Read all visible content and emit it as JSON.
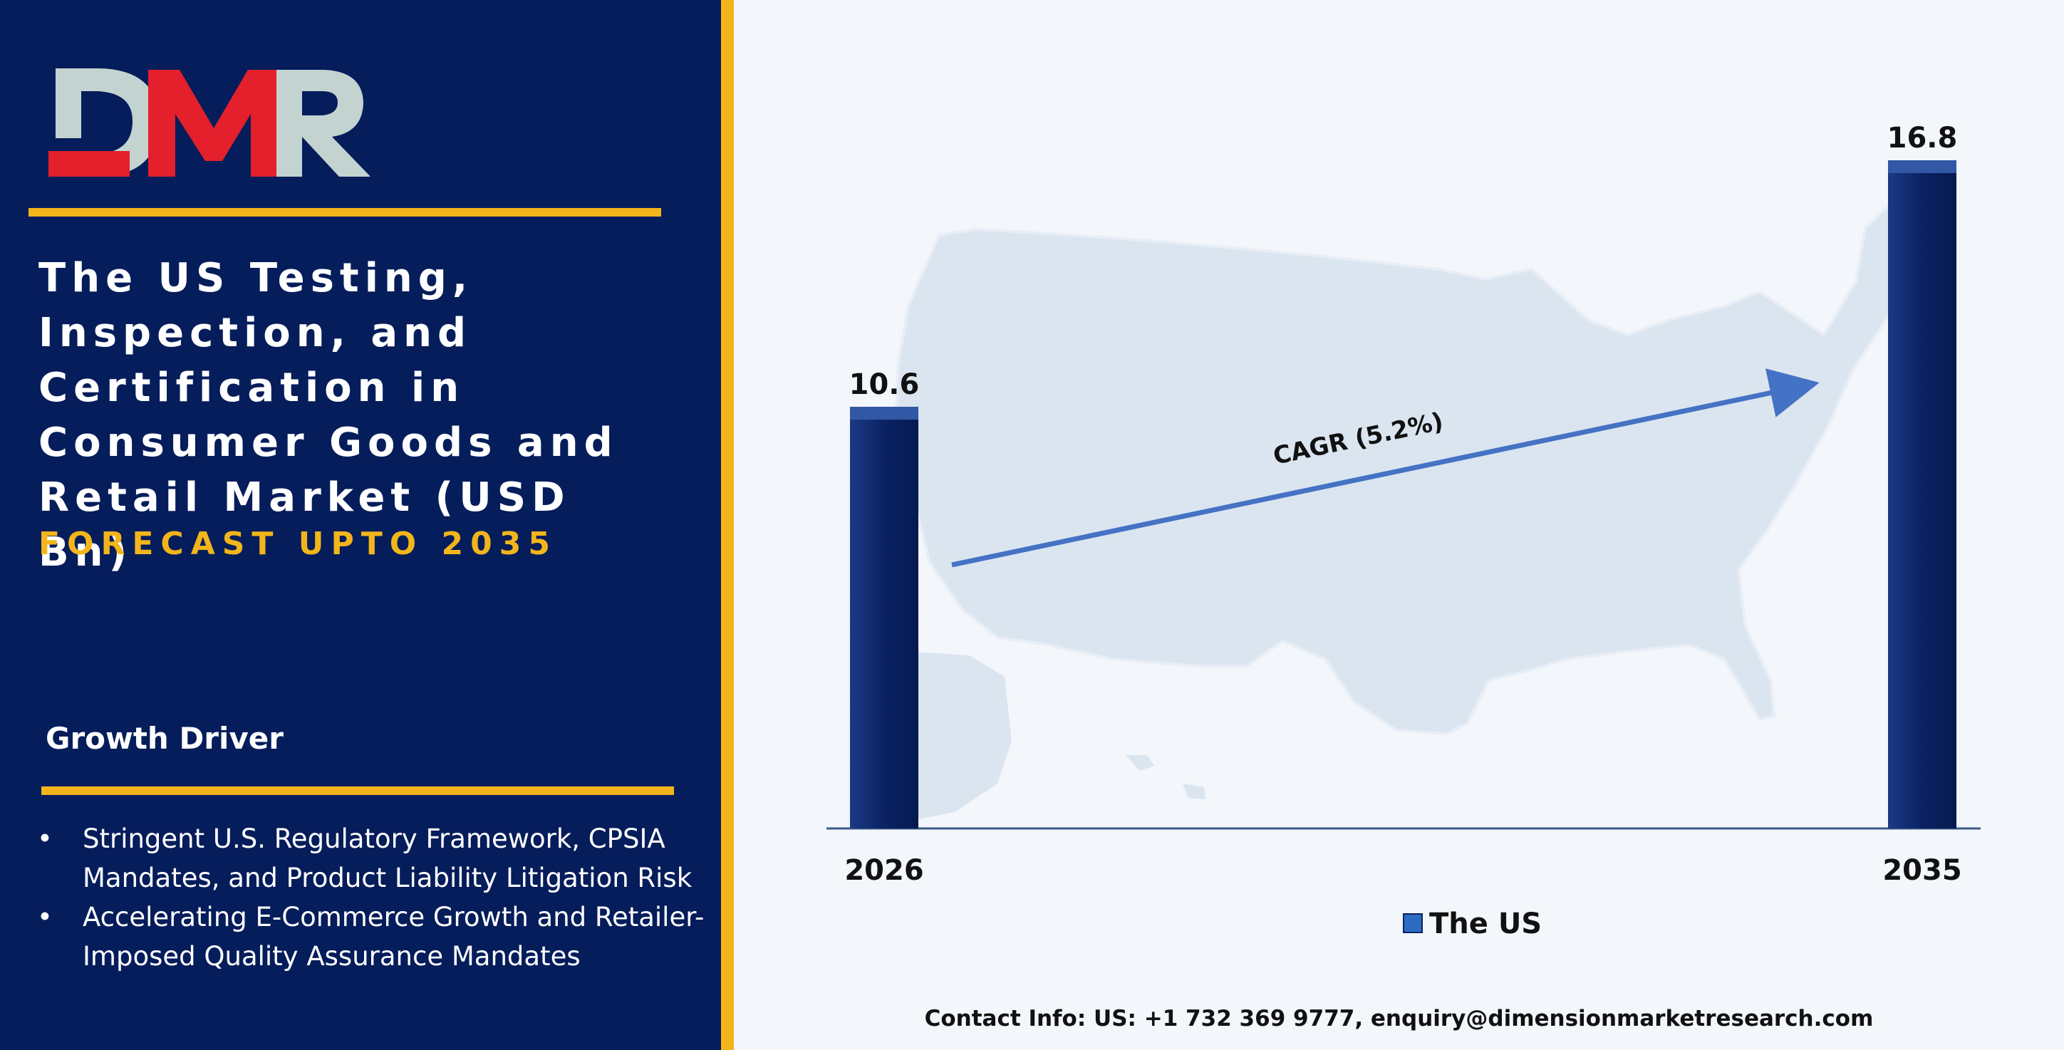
{
  "brand": {
    "logo_text": "DMR",
    "colors": {
      "navy": "#061d5b",
      "gold": "#f2b51b",
      "red": "#e3202b",
      "silver": "#c3d3d0"
    }
  },
  "title": {
    "lines": [
      "The US Testing,",
      "Inspection, and",
      "Certification in",
      "Consumer Goods and",
      "Retail Market (USD Bn)"
    ],
    "subtitle": "FORECAST UPTO 2035"
  },
  "growth_driver": {
    "heading": "Growth Driver",
    "items": [
      "Stringent U.S. Regulatory Framework, CPSIA Mandates, and Product Liability Litigation Risk",
      "Accelerating E-Commerce Growth and Retailer-Imposed Quality Assurance Mandates"
    ]
  },
  "chart_data": {
    "type": "bar",
    "categories": [
      "2026",
      "2035"
    ],
    "series": [
      {
        "name": "The US",
        "values": [
          10.6,
          16.8
        ],
        "color": "#0a2263"
      }
    ],
    "annotation": "CAGR (5.2%)",
    "legend": "bottom-center",
    "background": "United States map silhouette",
    "ylim": [
      0,
      18
    ],
    "grid": false
  },
  "contact": "Contact Info: US: +1 732 369 9777, enquiry@dimensionmarketresearch.com"
}
